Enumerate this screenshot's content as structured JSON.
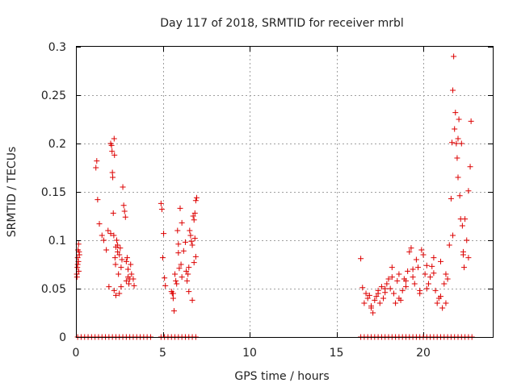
{
  "chart_data": {
    "type": "scatter",
    "title": "Day 117 of 2018, SRMTID for receiver mrbl",
    "xlabel": "GPS time / hours",
    "ylabel": "SRMTID / TECUs",
    "xlim": [
      0,
      24
    ],
    "ylim": [
      0,
      0.3
    ],
    "x_ticks": [
      0,
      5,
      10,
      15,
      20
    ],
    "y_ticks": [
      0,
      0.05,
      0.1,
      0.15,
      0.2,
      0.25,
      0.3
    ],
    "x_tick_labels": [
      "0",
      "5",
      "10",
      "15",
      "20"
    ],
    "y_tick_labels": [
      "0",
      "0.05",
      "0.1",
      "0.15",
      "0.2",
      "0.25",
      "0.3"
    ],
    "grid": true,
    "marker": "plus",
    "color": "#dd0000",
    "series": [
      {
        "name": "SRMTID",
        "x": [
          0.05,
          0.08,
          0.1,
          0.12,
          0.15,
          0.18,
          0.2,
          0.1,
          0.06,
          0.14,
          0.16,
          1.15,
          1.2,
          1.25,
          1.35,
          1.5,
          1.6,
          1.75,
          1.85,
          1.9,
          2.0,
          2.05,
          2.08,
          2.1,
          2.12,
          2.15,
          2.18,
          2.2,
          2.22,
          2.25,
          2.28,
          2.3,
          2.35,
          2.4,
          2.45,
          2.5,
          2.55,
          2.6,
          2.65,
          2.7,
          2.75,
          2.8,
          2.85,
          2.9,
          2.95,
          3.0,
          3.05,
          3.1,
          3.15,
          3.2,
          3.3,
          3.35,
          2.2,
          2.3,
          2.5,
          2.9,
          3.0,
          2.0,
          2.4,
          2.6,
          4.9,
          4.95,
          5.0,
          5.05,
          5.1,
          5.15,
          5.5,
          5.55,
          5.6,
          5.65,
          5.7,
          5.75,
          5.8,
          5.85,
          5.9,
          5.95,
          6.0,
          6.05,
          6.1,
          6.2,
          6.3,
          6.35,
          6.4,
          6.45,
          6.5,
          6.55,
          6.6,
          6.65,
          6.7,
          6.75,
          6.8,
          6.85,
          6.9,
          6.95,
          6.85,
          6.9,
          6.8,
          6.1,
          5.9,
          5.6,
          6.5,
          6.7,
          16.4,
          16.5,
          16.6,
          16.7,
          16.8,
          16.9,
          17.0,
          17.1,
          17.2,
          17.3,
          17.4,
          17.5,
          17.6,
          17.7,
          17.8,
          17.9,
          18.0,
          18.1,
          18.2,
          18.3,
          18.4,
          18.5,
          18.6,
          18.7,
          18.8,
          18.9,
          19.0,
          19.1,
          19.2,
          19.3,
          19.4,
          19.5,
          19.6,
          19.7,
          19.8,
          19.9,
          20.0,
          20.1,
          20.2,
          20.3,
          20.4,
          20.5,
          20.6,
          20.7,
          20.8,
          20.9,
          21.0,
          21.1,
          21.2,
          21.3,
          21.4,
          21.5,
          21.6,
          21.65,
          21.7,
          21.75,
          21.8,
          21.85,
          21.9,
          21.95,
          22.0,
          22.05,
          22.1,
          22.15,
          22.2,
          22.25,
          22.3,
          22.35,
          22.4,
          22.5,
          22.6,
          22.7,
          22.75,
          17.0,
          17.4,
          17.8,
          18.2,
          18.6,
          19.0,
          19.4,
          19.8,
          20.2,
          20.6,
          21.0,
          21.3,
          21.7,
          22.0,
          22.3,
          22.6,
          0.1,
          0.3,
          0.5,
          0.7,
          0.9,
          1.1,
          1.3,
          1.5,
          1.7,
          1.9,
          2.1,
          2.3,
          2.5,
          2.7,
          2.9,
          3.1,
          3.3,
          3.5,
          3.7,
          3.9,
          4.1,
          4.3,
          4.9,
          5.1,
          5.3,
          5.5,
          5.7,
          5.9,
          6.1,
          6.3,
          6.5,
          6.7,
          6.9,
          16.4,
          16.6,
          16.8,
          17.0,
          17.2,
          17.4,
          17.6,
          17.8,
          18.0,
          18.2,
          18.4,
          18.6,
          18.8,
          19.0,
          19.2,
          19.4,
          19.6,
          19.8,
          20.0,
          20.2,
          20.4,
          20.6,
          20.8,
          21.0,
          21.2,
          21.4,
          21.6,
          21.8,
          22.0,
          22.2,
          22.4,
          22.6,
          22.8
        ],
        "y": [
          0.065,
          0.072,
          0.082,
          0.09,
          0.096,
          0.088,
          0.085,
          0.075,
          0.062,
          0.078,
          0.068,
          0.175,
          0.182,
          0.142,
          0.117,
          0.105,
          0.1,
          0.09,
          0.11,
          0.052,
          0.2,
          0.198,
          0.192,
          0.17,
          0.165,
          0.128,
          0.105,
          0.205,
          0.188,
          0.082,
          0.075,
          0.093,
          0.1,
          0.088,
          0.065,
          0.085,
          0.092,
          0.072,
          0.08,
          0.155,
          0.136,
          0.13,
          0.124,
          0.078,
          0.082,
          0.062,
          0.055,
          0.06,
          0.075,
          0.065,
          0.06,
          0.053,
          0.048,
          0.043,
          0.045,
          0.058,
          0.07,
          0.107,
          0.095,
          0.052,
          0.138,
          0.132,
          0.082,
          0.107,
          0.061,
          0.053,
          0.047,
          0.045,
          0.04,
          0.027,
          0.065,
          0.058,
          0.055,
          0.11,
          0.087,
          0.071,
          0.133,
          0.075,
          0.062,
          0.089,
          0.098,
          0.068,
          0.058,
          0.065,
          0.072,
          0.11,
          0.105,
          0.099,
          0.095,
          0.125,
          0.121,
          0.128,
          0.141,
          0.144,
          0.102,
          0.083,
          0.077,
          0.118,
          0.096,
          0.045,
          0.047,
          0.038,
          0.081,
          0.051,
          0.035,
          0.045,
          0.04,
          0.043,
          0.032,
          0.025,
          0.038,
          0.042,
          0.048,
          0.035,
          0.052,
          0.04,
          0.046,
          0.055,
          0.06,
          0.05,
          0.072,
          0.045,
          0.035,
          0.058,
          0.065,
          0.038,
          0.048,
          0.06,
          0.052,
          0.068,
          0.088,
          0.092,
          0.062,
          0.055,
          0.08,
          0.072,
          0.045,
          0.09,
          0.085,
          0.065,
          0.074,
          0.055,
          0.062,
          0.073,
          0.066,
          0.048,
          0.035,
          0.04,
          0.042,
          0.03,
          0.055,
          0.065,
          0.06,
          0.095,
          0.143,
          0.201,
          0.255,
          0.29,
          0.215,
          0.232,
          0.2,
          0.185,
          0.165,
          0.225,
          0.146,
          0.122,
          0.2,
          0.115,
          0.088,
          0.072,
          0.122,
          0.1,
          0.082,
          0.176,
          0.223,
          0.03,
          0.045,
          0.05,
          0.062,
          0.04,
          0.058,
          0.07,
          0.048,
          0.05,
          0.082,
          0.078,
          0.035,
          0.105,
          0.205,
          0.085,
          0.151,
          0,
          0,
          0,
          0,
          0,
          0,
          0,
          0,
          0,
          0,
          0,
          0,
          0,
          0,
          0,
          0,
          0,
          0,
          0,
          0,
          0,
          0,
          0,
          0,
          0,
          0,
          0,
          0,
          0,
          0,
          0,
          0,
          0,
          0,
          0,
          0,
          0,
          0,
          0,
          0,
          0,
          0,
          0,
          0,
          0,
          0,
          0,
          0,
          0,
          0,
          0,
          0,
          0,
          0,
          0,
          0,
          0,
          0,
          0,
          0,
          0,
          0,
          0,
          0,
          0,
          0
        ]
      }
    ]
  }
}
